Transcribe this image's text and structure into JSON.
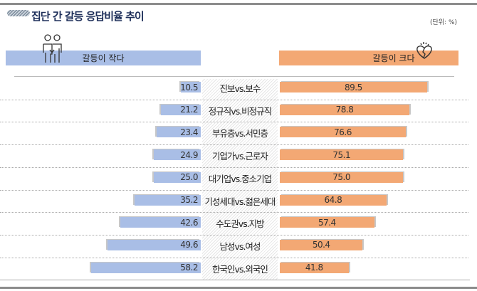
{
  "title": "집단 간 갈등 응답비율 추이",
  "unit": "(단위: %)",
  "legend_left": "갈등이 작다",
  "legend_right": "갈등이 크다",
  "colors": {
    "left": "#a9bee6",
    "right": "#f3a874"
  },
  "chart_data": {
    "type": "bar",
    "orientation": "horizontal-diverging",
    "categories": [
      "진보vs.보수",
      "정규직vs.비정규직",
      "부유층vs.서민층",
      "기업가vs.근로자",
      "대기업vs.중소기업",
      "기성세대vs.젊은세대",
      "수도권vs.지방",
      "남성vs.여성",
      "한국인vs.외국인"
    ],
    "series": [
      {
        "name": "갈등이 작다",
        "values": [
          10.5,
          21.2,
          23.4,
          24.9,
          25.0,
          35.2,
          42.6,
          49.6,
          58.2
        ]
      },
      {
        "name": "갈등이 크다",
        "values": [
          89.5,
          78.8,
          76.6,
          75.1,
          75.0,
          64.8,
          57.4,
          50.4,
          41.8
        ]
      }
    ],
    "title": "집단 간 갈등 응답비율 추이"
  }
}
